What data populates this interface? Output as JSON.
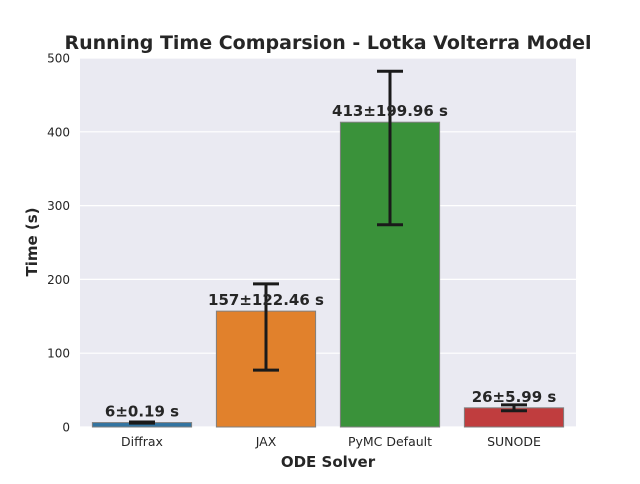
{
  "chart_data": {
    "type": "bar",
    "title": "Running Time Comparsion - Lotka Volterra Model",
    "xlabel": "ODE Solver",
    "ylabel": "Time (s)",
    "categories": [
      "Diffrax",
      "JAX",
      "PyMC Default",
      "SUNODE"
    ],
    "values": [
      6,
      157,
      413,
      26
    ],
    "errors": [
      0.19,
      122.46,
      199.96,
      5.99
    ],
    "error_bars": [
      [
        5.2,
        6.8
      ],
      [
        77,
        194
      ],
      [
        274,
        482
      ],
      [
        22,
        30
      ]
    ],
    "bar_labels": [
      "6±0.19 s",
      "157±122.46 s",
      "413±199.96 s",
      "26±5.99 s"
    ],
    "colors": [
      "#3274a1",
      "#e1812c",
      "#3a923a",
      "#c03d3e"
    ],
    "ylim": [
      0,
      500
    ],
    "yticks": [
      0,
      100,
      200,
      300,
      400,
      500
    ],
    "grid": true,
    "background": "#eaeaf2"
  }
}
